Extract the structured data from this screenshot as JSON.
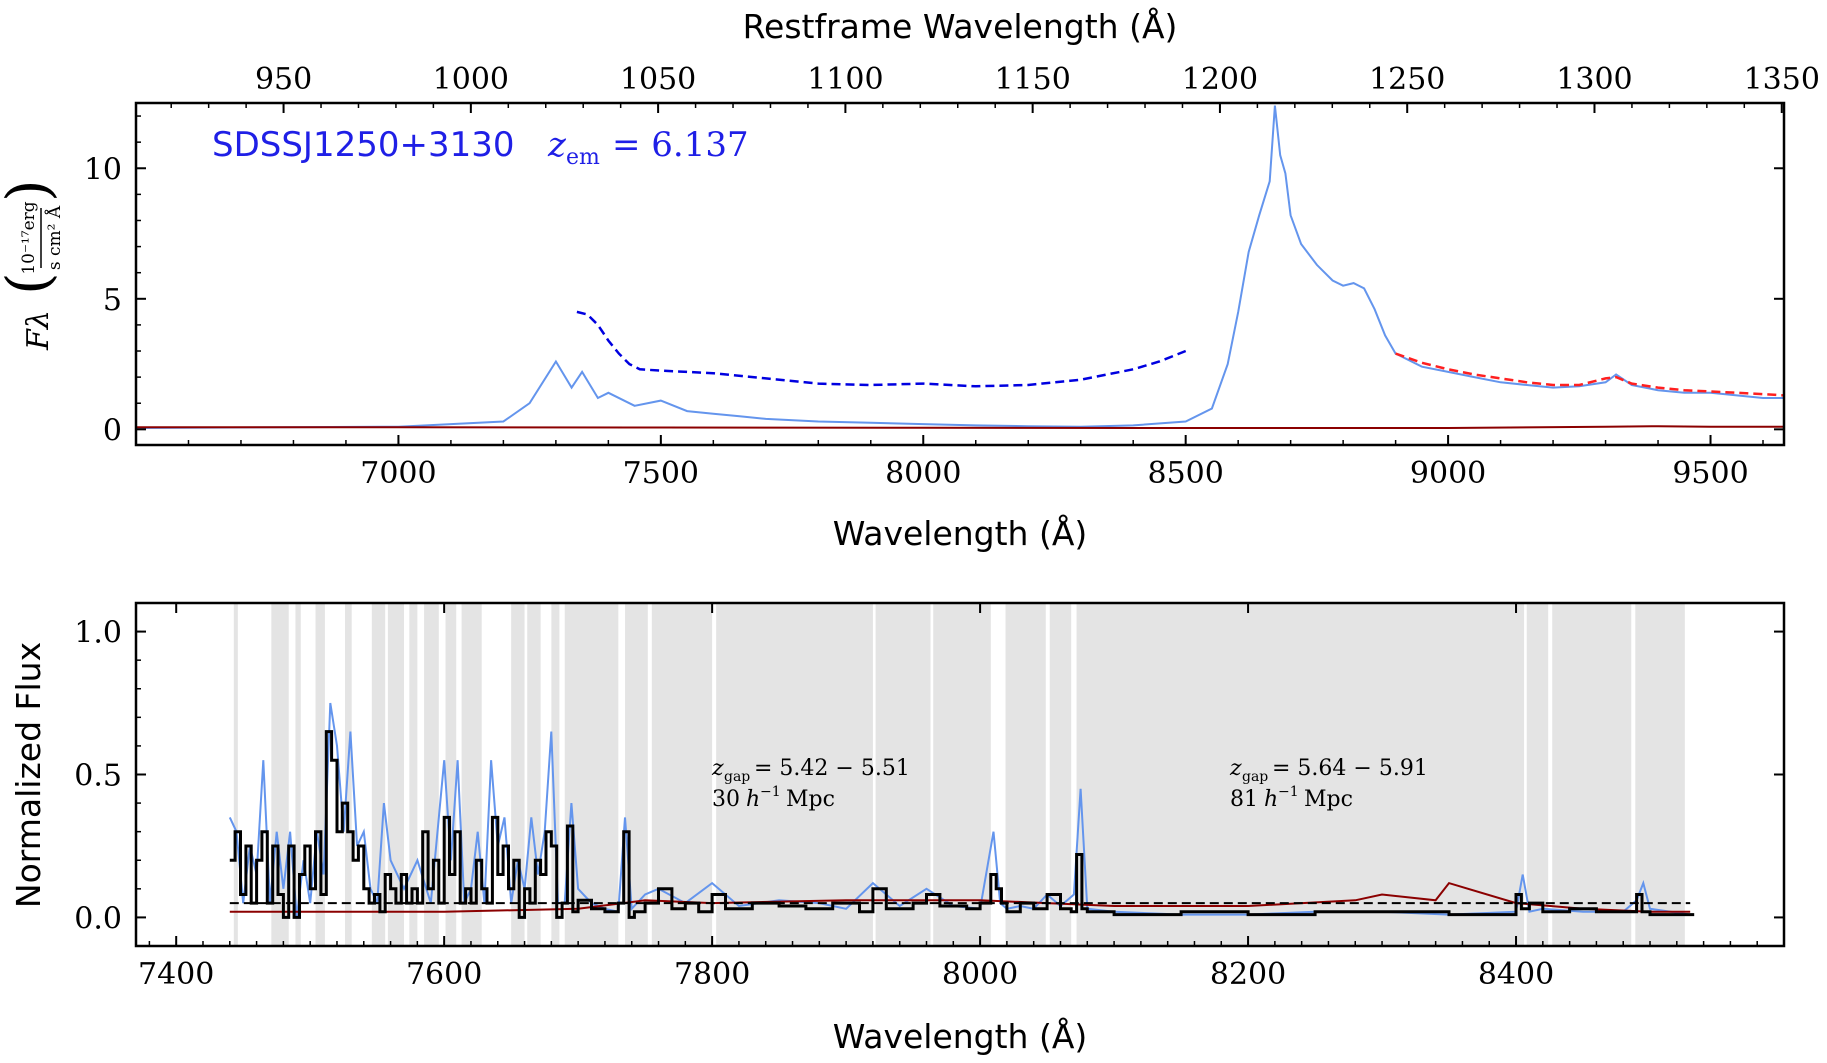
{
  "chart_data": [
    {
      "type": "line",
      "title": "",
      "xlabel": "Wavelength (Å)",
      "xlabel_top": "Restframe Wavelength (Å)",
      "ylabel_symbol": "Fλ",
      "ylabel_unit_numerator": "10⁻¹⁷erg",
      "ylabel_unit_denominator": "s cm² Å",
      "xlim": [
        6500,
        9640
      ],
      "ylim": [
        -0.6,
        12.5
      ],
      "top_xlim": [
        910.6,
        1350.6
      ],
      "xticks": [
        7000,
        7500,
        8000,
        8500,
        9000,
        9500
      ],
      "yticks": [
        0,
        5,
        10
      ],
      "top_xticks": [
        950,
        1000,
        1050,
        1100,
        1150,
        1200,
        1250,
        1300,
        1350
      ],
      "annotation": {
        "object": "SDSSJ1250+3130",
        "z_symbol": "z",
        "z_sub": "em",
        "z_value": "= 6.137",
        "color": "#1f1fe6"
      },
      "series": [
        {
          "role": "spectrum",
          "color": "#6495ED",
          "x": [
            6500,
            7000,
            7200,
            7250,
            7300,
            7330,
            7350,
            7380,
            7400,
            7450,
            7500,
            7550,
            7600,
            7650,
            7700,
            7800,
            7900,
            8000,
            8100,
            8200,
            8300,
            8400,
            8500,
            8550,
            8580,
            8600,
            8620,
            8640,
            8660,
            8670,
            8680,
            8690,
            8700,
            8720,
            8750,
            8780,
            8800,
            8820,
            8840,
            8860,
            8880,
            8900,
            8950,
            9000,
            9050,
            9100,
            9150,
            9200,
            9250,
            9300,
            9320,
            9350,
            9400,
            9450,
            9500,
            9550,
            9600,
            9640
          ],
          "y": [
            0.05,
            0.1,
            0.3,
            1.0,
            2.6,
            1.6,
            2.2,
            1.2,
            1.4,
            0.9,
            1.1,
            0.7,
            0.6,
            0.5,
            0.4,
            0.3,
            0.25,
            0.2,
            0.15,
            0.12,
            0.1,
            0.15,
            0.3,
            0.8,
            2.5,
            4.5,
            6.8,
            8.2,
            9.5,
            12.4,
            10.5,
            9.8,
            8.2,
            7.1,
            6.3,
            5.7,
            5.5,
            5.6,
            5.4,
            4.6,
            3.6,
            2.9,
            2.4,
            2.2,
            2.0,
            1.8,
            1.7,
            1.6,
            1.65,
            1.8,
            2.1,
            1.7,
            1.5,
            1.4,
            1.4,
            1.3,
            1.2,
            1.2
          ]
        },
        {
          "role": "noise",
          "color": "#8b0000",
          "x": [
            6500,
            7000,
            7500,
            8000,
            8500,
            9000,
            9300,
            9400,
            9500,
            9640
          ],
          "y": [
            0.08,
            0.08,
            0.07,
            0.06,
            0.05,
            0.05,
            0.1,
            0.12,
            0.1,
            0.1
          ]
        },
        {
          "role": "continuum-prediction",
          "color": "#0000e0",
          "style": "dashed",
          "x": [
            7340,
            7360,
            7380,
            7400,
            7420,
            7440,
            7460,
            7500,
            7600,
            7700,
            7800,
            7900,
            8000,
            8100,
            8200,
            8300,
            8400,
            8450,
            8500
          ],
          "y": [
            4.5,
            4.4,
            4.0,
            3.4,
            2.9,
            2.5,
            2.3,
            2.25,
            2.15,
            1.95,
            1.75,
            1.7,
            1.75,
            1.65,
            1.7,
            1.9,
            2.3,
            2.6,
            3.0
          ]
        },
        {
          "role": "continuum-fit",
          "color": "#ff2020",
          "style": "dashed",
          "x": [
            8900,
            8950,
            9000,
            9050,
            9100,
            9150,
            9200,
            9250,
            9300,
            9320,
            9350,
            9400,
            9450,
            9500,
            9550,
            9600,
            9640
          ],
          "y": [
            2.9,
            2.55,
            2.3,
            2.1,
            1.95,
            1.8,
            1.7,
            1.7,
            1.95,
            2.0,
            1.75,
            1.6,
            1.5,
            1.45,
            1.4,
            1.35,
            1.3
          ]
        }
      ]
    },
    {
      "type": "line",
      "title": "",
      "xlabel": "Wavelength (Å)",
      "ylabel": "Normalized Flux",
      "xlim": [
        7370,
        8600
      ],
      "ylim": [
        -0.1,
        1.1
      ],
      "xticks": [
        7400,
        7600,
        7800,
        8000,
        8200,
        8400
      ],
      "yticks": [
        0.0,
        0.5,
        1.0
      ],
      "ytick_labels": [
        "0.0",
        "0.5",
        "1.0"
      ],
      "threshold": 0.05,
      "shaded_regions": [
        [
          7443,
          7446
        ],
        [
          7471,
          7484
        ],
        [
          7489,
          7493
        ],
        [
          7504,
          7511
        ],
        [
          7526,
          7531
        ],
        [
          7546,
          7556
        ],
        [
          7558,
          7570
        ],
        [
          7574,
          7580
        ],
        [
          7585,
          7596
        ],
        [
          7601,
          7609
        ],
        [
          7613,
          7628
        ],
        [
          7650,
          7660
        ],
        [
          7662,
          7672
        ],
        [
          7680,
          7686
        ],
        [
          7690,
          7730
        ],
        [
          7735,
          7752
        ],
        [
          7755,
          7800
        ],
        [
          7803,
          7920
        ],
        [
          7922,
          7963
        ],
        [
          7965,
          8008
        ],
        [
          8019,
          8049
        ],
        [
          8052,
          8068
        ],
        [
          8072,
          8406
        ],
        [
          8408,
          8424
        ],
        [
          8427,
          8486
        ],
        [
          8489,
          8526
        ]
      ],
      "annotations": [
        {
          "z_symbol": "z",
          "z_sub": "gap",
          "range": "= 5.42 − 5.51",
          "distance_value": "30",
          "distance_h": "h",
          "distance_exp": "−1",
          "distance_unit": "Mpc"
        },
        {
          "z_symbol": "z",
          "z_sub": "gap",
          "range": "= 5.64 − 5.91",
          "distance_value": "81",
          "distance_h": "h",
          "distance_exp": "−1",
          "distance_unit": "Mpc"
        }
      ],
      "series": [
        {
          "role": "spectrum",
          "color": "#6495ED",
          "x": [
            7440,
            7445,
            7450,
            7455,
            7460,
            7465,
            7470,
            7475,
            7480,
            7485,
            7490,
            7495,
            7500,
            7505,
            7510,
            7515,
            7520,
            7525,
            7530,
            7535,
            7540,
            7545,
            7550,
            7555,
            7560,
            7570,
            7580,
            7590,
            7600,
            7605,
            7610,
            7615,
            7620,
            7625,
            7630,
            7635,
            7640,
            7645,
            7650,
            7655,
            7660,
            7665,
            7670,
            7675,
            7680,
            7685,
            7690,
            7695,
            7700,
            7710,
            7720,
            7730,
            7735,
            7740,
            7750,
            7760,
            7780,
            7800,
            7820,
            7850,
            7880,
            7900,
            7920,
            7940,
            7960,
            7980,
            8000,
            8010,
            8015,
            8020,
            8030,
            8040,
            8050,
            8060,
            8070,
            8075,
            8080,
            8100,
            8150,
            8200,
            8250,
            8300,
            8350,
            8400,
            8405,
            8410,
            8420,
            8450,
            8480,
            8490,
            8495,
            8500,
            8530
          ],
          "y": [
            0.35,
            0.3,
            0.05,
            0.25,
            0.15,
            0.55,
            0.05,
            0.3,
            0.1,
            0.3,
            0.0,
            0.2,
            0.05,
            0.3,
            0.15,
            0.75,
            0.6,
            0.3,
            0.65,
            0.25,
            0.3,
            0.1,
            0.05,
            0.4,
            0.2,
            0.1,
            0.2,
            0.05,
            0.55,
            0.2,
            0.55,
            0.05,
            0.1,
            0.3,
            0.05,
            0.55,
            0.25,
            0.35,
            0.05,
            0.2,
            0.1,
            0.35,
            0.15,
            0.3,
            0.65,
            0.05,
            0.05,
            0.4,
            0.1,
            0.05,
            0.03,
            0.02,
            0.35,
            0.03,
            0.08,
            0.1,
            0.05,
            0.12,
            0.04,
            0.06,
            0.05,
            0.03,
            0.12,
            0.04,
            0.1,
            0.04,
            0.03,
            0.3,
            0.05,
            0.03,
            0.04,
            0.03,
            0.08,
            0.04,
            0.08,
            0.45,
            0.03,
            0.02,
            0.01,
            0.01,
            0.02,
            0.02,
            0.01,
            0.02,
            0.15,
            0.02,
            0.03,
            0.02,
            0.02,
            0.06,
            0.12,
            0.03,
            0.01
          ]
        },
        {
          "role": "noise",
          "color": "#8b0000",
          "x": [
            7440,
            7600,
            7700,
            7750,
            7800,
            7900,
            8000,
            8050,
            8100,
            8200,
            8280,
            8300,
            8340,
            8350,
            8400,
            8450,
            8500,
            8530
          ],
          "y": [
            0.02,
            0.02,
            0.03,
            0.06,
            0.05,
            0.06,
            0.06,
            0.05,
            0.04,
            0.04,
            0.06,
            0.08,
            0.06,
            0.12,
            0.05,
            0.03,
            0.02,
            0.02
          ]
        },
        {
          "role": "binned",
          "color": "#000000",
          "x": [
            7440,
            7444,
            7448,
            7452,
            7456,
            7460,
            7464,
            7468,
            7472,
            7476,
            7480,
            7484,
            7488,
            7492,
            7496,
            7500,
            7504,
            7508,
            7512,
            7516,
            7520,
            7524,
            7528,
            7532,
            7536,
            7540,
            7544,
            7548,
            7552,
            7556,
            7560,
            7564,
            7568,
            7572,
            7576,
            7580,
            7584,
            7588,
            7592,
            7596,
            7600,
            7604,
            7608,
            7612,
            7616,
            7620,
            7624,
            7628,
            7632,
            7636,
            7640,
            7644,
            7648,
            7652,
            7656,
            7660,
            7664,
            7668,
            7672,
            7676,
            7680,
            7684,
            7688,
            7692,
            7696,
            7700,
            7710,
            7720,
            7730,
            7734,
            7738,
            7742,
            7750,
            7760,
            7770,
            7780,
            7790,
            7800,
            7810,
            7830,
            7850,
            7870,
            7890,
            7910,
            7920,
            7930,
            7950,
            7960,
            7970,
            7990,
            8000,
            8008,
            8012,
            8016,
            8020,
            8030,
            8040,
            8050,
            8060,
            8068,
            8072,
            8076,
            8080,
            8100,
            8150,
            8200,
            8250,
            8300,
            8350,
            8400,
            8404,
            8410,
            8420,
            8440,
            8460,
            8480,
            8490,
            8494,
            8500,
            8530
          ],
          "y": [
            0.2,
            0.3,
            0.08,
            0.25,
            0.05,
            0.2,
            0.3,
            0.05,
            0.25,
            0.08,
            0.0,
            0.25,
            0.0,
            0.15,
            0.25,
            0.1,
            0.3,
            0.08,
            0.65,
            0.55,
            0.3,
            0.4,
            0.3,
            0.2,
            0.25,
            0.1,
            0.05,
            0.08,
            0.02,
            0.15,
            0.1,
            0.05,
            0.15,
            0.05,
            0.1,
            0.05,
            0.3,
            0.1,
            0.2,
            0.05,
            0.35,
            0.15,
            0.3,
            0.05,
            0.1,
            0.05,
            0.2,
            0.1,
            0.05,
            0.35,
            0.15,
            0.25,
            0.1,
            0.2,
            0.0,
            0.1,
            0.05,
            0.2,
            0.15,
            0.3,
            0.25,
            0.0,
            0.05,
            0.32,
            0.02,
            0.06,
            0.03,
            0.02,
            0.05,
            0.3,
            0.0,
            0.02,
            0.05,
            0.1,
            0.03,
            0.05,
            0.02,
            0.08,
            0.03,
            0.05,
            0.04,
            0.03,
            0.05,
            0.02,
            0.1,
            0.03,
            0.05,
            0.08,
            0.04,
            0.03,
            0.05,
            0.15,
            0.1,
            0.05,
            0.02,
            0.05,
            0.03,
            0.08,
            0.03,
            0.02,
            0.22,
            0.03,
            0.02,
            0.01,
            0.02,
            0.01,
            0.02,
            0.02,
            0.01,
            0.08,
            0.03,
            0.05,
            0.02,
            0.03,
            0.02,
            0.02,
            0.08,
            0.02,
            0.01,
            0.01
          ]
        }
      ]
    }
  ]
}
